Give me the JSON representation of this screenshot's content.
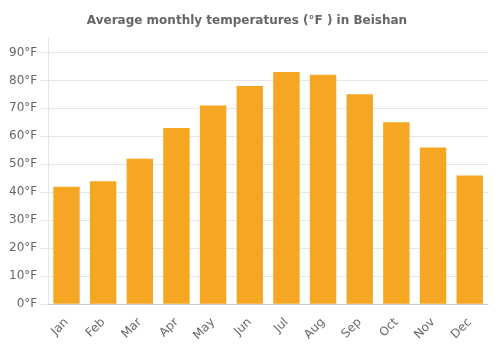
{
  "chart_data": {
    "type": "bar",
    "title": "Average monthly temperatures (°F ) in Beishan",
    "categories": [
      "Jan",
      "Feb",
      "Mar",
      "Apr",
      "May",
      "Jun",
      "Jul",
      "Aug",
      "Sep",
      "Oct",
      "Nov",
      "Dec"
    ],
    "values": [
      42,
      44,
      52,
      63,
      71,
      78,
      83,
      82,
      75,
      65,
      56,
      46
    ],
    "color": "#F5A623",
    "ylim": [
      0,
      95
    ],
    "yticks": [
      {
        "value": 0,
        "label": "0°F"
      },
      {
        "value": 10,
        "label": "10°F"
      },
      {
        "value": 20,
        "label": "20°F"
      },
      {
        "value": 30,
        "label": "30°F"
      },
      {
        "value": 40,
        "label": "40°F"
      },
      {
        "value": 50,
        "label": "50°F"
      },
      {
        "value": 60,
        "label": "60°F"
      },
      {
        "value": 70,
        "label": "70°F"
      },
      {
        "value": 80,
        "label": "80°F"
      },
      {
        "value": 90,
        "label": "90°F"
      }
    ],
    "grid": true
  }
}
